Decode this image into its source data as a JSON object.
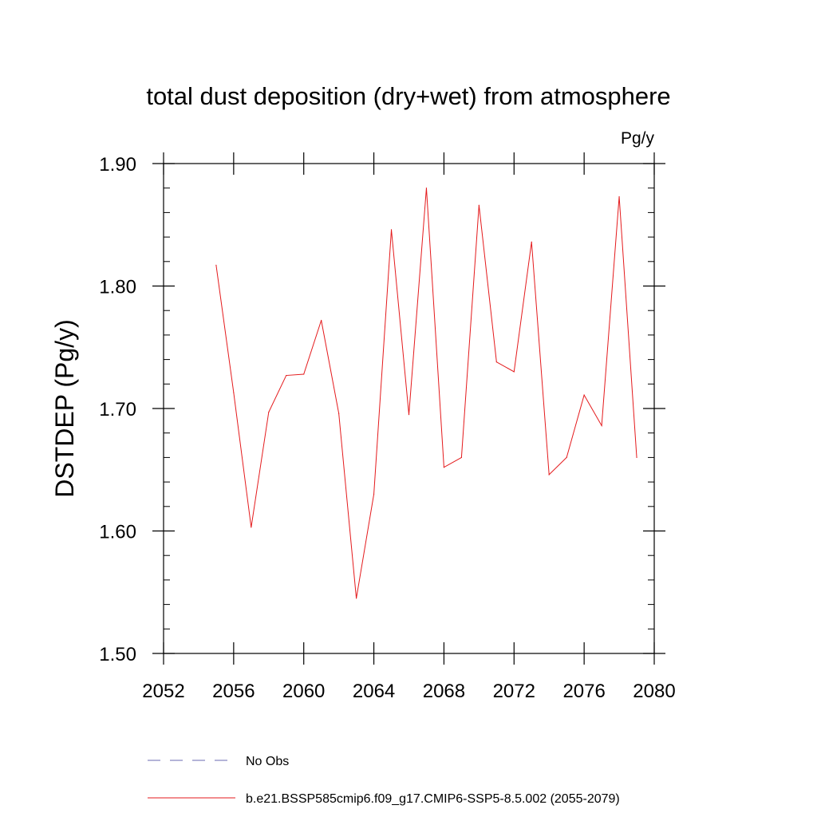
{
  "chart_data": {
    "type": "line",
    "title": "total dust deposition (dry+wet) from atmosphere",
    "unit_label": "Pg/y",
    "ylabel": "DSTDEP  (Pg/y)",
    "xlabel": "",
    "xlim": [
      2052,
      2080
    ],
    "ylim": [
      1.5,
      1.9
    ],
    "x_ticks": [
      2052,
      2056,
      2060,
      2064,
      2068,
      2072,
      2076,
      2080
    ],
    "x_tick_labels": [
      "2052",
      "2056",
      "2060",
      "2064",
      "2068",
      "2072",
      "2076",
      "2080"
    ],
    "y_ticks": [
      1.5,
      1.6,
      1.7,
      1.8,
      1.9
    ],
    "y_tick_labels": [
      "1.50",
      "1.60",
      "1.70",
      "1.80",
      "1.90"
    ],
    "grid": false,
    "legend_position": "bottom",
    "series": [
      {
        "name": "No Obs",
        "color": "#6a6ab0",
        "dash": "dashed",
        "x": [],
        "values": []
      },
      {
        "name": "b.e21.BSSP585cmip6.f09_g17.CMIP6-SSP5-8.5.002 (2055-2079)",
        "color": "#e41a1c",
        "dash": "solid",
        "x": [
          2055,
          2056,
          2057,
          2058,
          2059,
          2060,
          2061,
          2062,
          2063,
          2064,
          2065,
          2066,
          2067,
          2068,
          2069,
          2070,
          2071,
          2072,
          2073,
          2074,
          2075,
          2076,
          2077,
          2078,
          2079
        ],
        "values": [
          1.817,
          1.713,
          1.603,
          1.697,
          1.727,
          1.728,
          1.772,
          1.696,
          1.545,
          1.63,
          1.846,
          1.695,
          1.88,
          1.652,
          1.66,
          1.866,
          1.738,
          1.73,
          1.836,
          1.646,
          1.66,
          1.711,
          1.686,
          1.873,
          1.66
        ]
      }
    ]
  }
}
